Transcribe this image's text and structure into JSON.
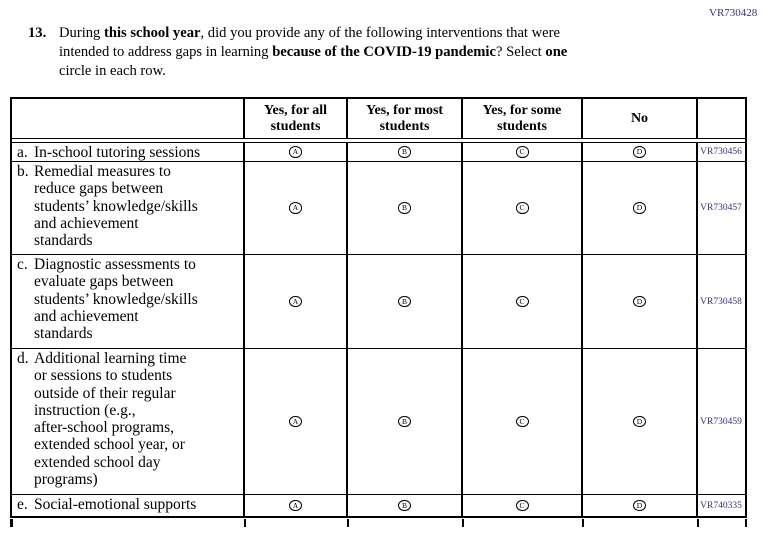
{
  "page": {
    "top_right_code": "VR730428"
  },
  "question": {
    "number": "13.",
    "segments": {
      "seg1": "During ",
      "bold1": "this school year",
      "seg2": ", did you provide any of the following interventions that were\nintended to address gaps in learning ",
      "bold2": "because of the COVID-19 pandemic",
      "seg3": "? Select ",
      "bold3": "one",
      "seg4": "\ncircle in each row."
    }
  },
  "table": {
    "headers": [
      {
        "label": "Yes, for all\nstudents"
      },
      {
        "label": "Yes, for most\nstudents"
      },
      {
        "label": "Yes, for some\nstudents"
      },
      {
        "label": "No"
      },
      {
        "label": ""
      }
    ],
    "options": [
      "A",
      "B",
      "C",
      "D"
    ],
    "rows": [
      {
        "letter": "a.",
        "label": "In-school tutoring sessions",
        "code": "VR730456"
      },
      {
        "letter": "b.",
        "label": "Remedial measures to\nreduce gaps between\nstudents’ knowledge/skills\nand achievement\nstandards",
        "code": "VR730457"
      },
      {
        "letter": "c.",
        "label": "Diagnostic assessments to\nevaluate gaps between\nstudents’ knowledge/skills\nand achievement\nstandards",
        "code": "VR730458"
      },
      {
        "letter": "d.",
        "label": "Additional learning time\nor sessions to students\noutside of their regular\ninstruction (e.g.,\nafter-school programs,\nextended school year, or\nextended school day\nprograms)",
        "code": "VR730459"
      },
      {
        "letter": "e.",
        "label": "Social-emotional supports",
        "code": "VR740335"
      }
    ]
  },
  "colors": {
    "code_text": "#33337d",
    "border_color": "#000000",
    "page_bg": "#ffffff"
  }
}
